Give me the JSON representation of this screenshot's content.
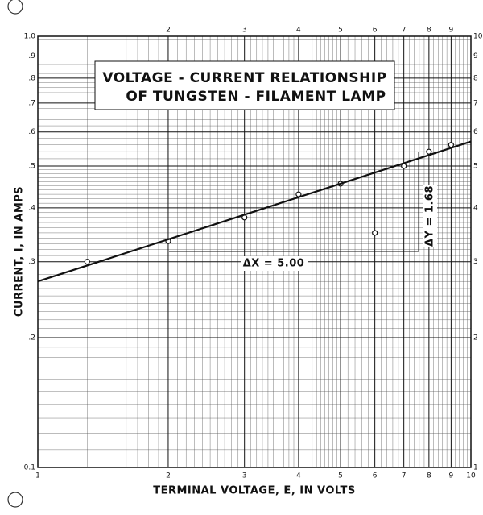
{
  "chart_data": {
    "type": "scatter",
    "title": [
      "VOLTAGE - CURRENT RELATIONSHIP",
      "OF TUNGSTEN - FILAMENT LAMP"
    ],
    "xlabel": "TERMINAL VOLTAGE, E, IN VOLTS",
    "ylabel": "CURRENT, I, IN AMPS",
    "xscale": "log",
    "yscale": "log",
    "grid": true,
    "xlim": [
      1,
      10
    ],
    "ylim": [
      0.1,
      1.0
    ],
    "xticks": [
      1,
      2,
      3,
      4,
      5,
      6,
      7,
      8,
      9,
      10
    ],
    "yticks": [
      {
        "value": 1.0,
        "label": "1.0"
      },
      {
        "value": 0.9,
        "label": ".9"
      },
      {
        "value": 0.8,
        "label": ".8"
      },
      {
        "value": 0.7,
        "label": ".7"
      },
      {
        "value": 0.6,
        "label": ".6"
      },
      {
        "value": 0.5,
        "label": ".5"
      },
      {
        "value": 0.4,
        "label": ".4"
      },
      {
        "value": 0.3,
        "label": ".3"
      },
      {
        "value": 0.2,
        "label": ".2"
      },
      {
        "value": 0.1,
        "label": "0.1"
      }
    ],
    "y2lim": [
      1,
      10
    ],
    "y2ticks": [
      1,
      2,
      3,
      4,
      5,
      6,
      7,
      8,
      9,
      10
    ],
    "series": [
      {
        "type": "scatter",
        "color": "#111",
        "x": [
          1.3,
          2,
          3,
          4,
          5,
          6,
          7,
          8,
          9
        ],
        "values": [
          0.3,
          0.335,
          0.38,
          0.43,
          0.455,
          0.35,
          0.5,
          0.54,
          0.56
        ]
      },
      {
        "type": "line",
        "color": "#111",
        "x": [
          1,
          10
        ],
        "values": [
          0.27,
          0.57
        ]
      }
    ],
    "annotations": [
      "ΔX = 5.00",
      "ΔY = 1.68"
    ]
  }
}
